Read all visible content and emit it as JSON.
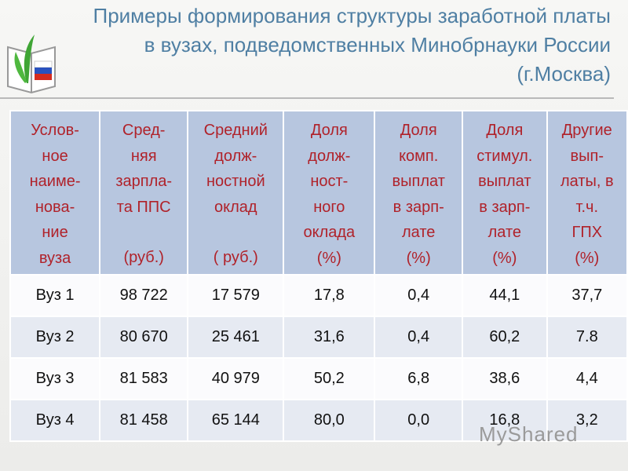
{
  "header": {
    "title_lines": [
      "Примеры формирования структуры заработной платы",
      "в вузах, подведомственных  Минобрнауки России",
      "(г.Москва)"
    ]
  },
  "table": {
    "header": [
      [
        "Услов-",
        "ное",
        "наиме-",
        "нова-",
        "ние",
        "вуза"
      ],
      [
        "Сред-",
        "няя",
        "зарпла-",
        "та ППС",
        "",
        "(руб.)"
      ],
      [
        "Средний",
        "долж-",
        "ностной",
        "оклад",
        "",
        "( руб.)"
      ],
      [
        "Доля",
        "долж-",
        "ност-",
        "ного",
        "оклада",
        "(%)"
      ],
      [
        "Доля",
        "комп.",
        "выплат",
        "в зарп-",
        "лате",
        "(%)"
      ],
      [
        "Доля",
        "стимул.",
        "выплат",
        "в зарп-",
        "лате",
        "(%)"
      ],
      [
        "Другие",
        "вып-",
        "латы, в",
        "т.ч.",
        "ГПХ",
        "(%)"
      ]
    ],
    "rows": [
      [
        "Вуз 1",
        "98 722",
        "17 579",
        "17,8",
        "0,4",
        "44,1",
        "37,7"
      ],
      [
        "Вуз 2",
        "80 670",
        "25 461",
        "31,6",
        "0,4",
        "60,2",
        "7.8"
      ],
      [
        "Вуз 3",
        "81 583",
        "40 979",
        "50,2",
        "6,8",
        "38,6",
        "4,4"
      ],
      [
        "Вуз 4",
        "81 458",
        "65 144",
        "80,0",
        "0,0",
        "16,8",
        "3,2"
      ]
    ]
  },
  "watermark": "MyShared"
}
